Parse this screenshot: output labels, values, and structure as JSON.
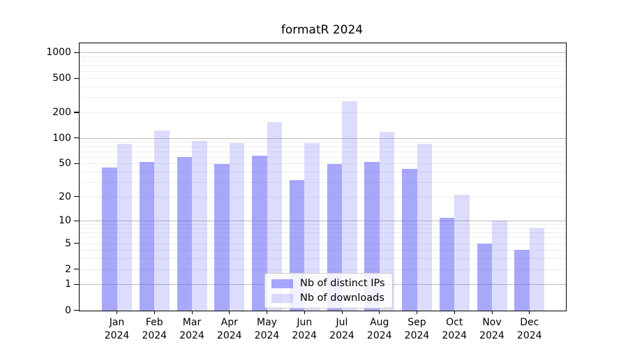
{
  "chart_data": {
    "type": "bar",
    "title": "formatR 2024",
    "categories": [
      "Jan",
      "Feb",
      "Mar",
      "Apr",
      "May",
      "Jun",
      "Jul",
      "Aug",
      "Sep",
      "Oct",
      "Nov",
      "Dec"
    ],
    "year_label": "2024",
    "series": [
      {
        "name": "Nb of distinct IPs",
        "color": "rgba(88,88,246,0.52)",
        "values": [
          45,
          52,
          60,
          49,
          62,
          32,
          49,
          52,
          43,
          11,
          5,
          4
        ]
      },
      {
        "name": "Nb of downloads",
        "color": "rgba(88,88,246,0.21)",
        "values": [
          85,
          123,
          92,
          87,
          153,
          87,
          270,
          117,
          85,
          21,
          10,
          8
        ]
      }
    ],
    "y_ticks": [
      0,
      1,
      2,
      5,
      10,
      20,
      50,
      100,
      200,
      500,
      1000
    ],
    "y_scale": "log10(value+1)",
    "ylim": [
      0,
      1280
    ],
    "xlabel": "",
    "ylabel": "",
    "grid": true,
    "legend_position": "lower center",
    "style": {
      "major_gridline_color": "#bdbdbd",
      "minor_gridline_color": "#ededed",
      "axis_color": "#000000",
      "legend_border_color": "#cccccc"
    }
  }
}
